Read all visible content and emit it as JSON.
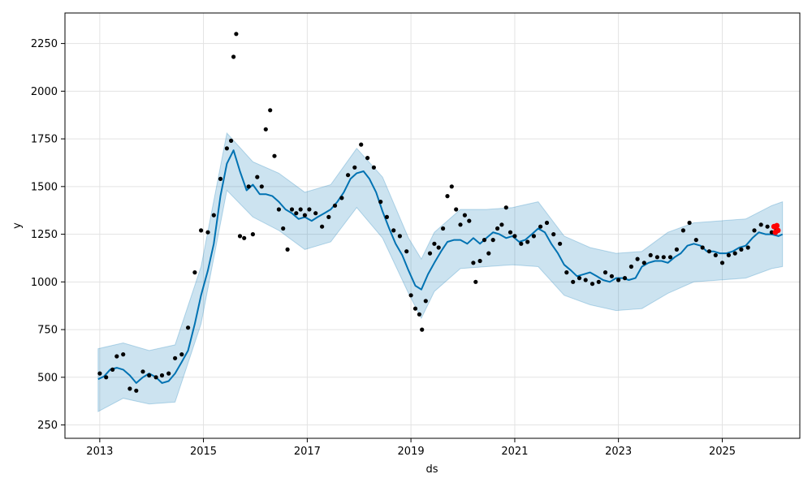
{
  "chart_data": {
    "type": "scatter",
    "title": "",
    "xlabel": "ds",
    "ylabel": "y",
    "grid": true,
    "xlim": [
      "2012-05-01",
      "2026-07-01"
    ],
    "ylim": [
      180,
      2410
    ],
    "x_ticks": [
      "2013",
      "2015",
      "2017",
      "2019",
      "2021",
      "2023",
      "2025"
    ],
    "y_ticks": [
      250,
      500,
      750,
      1000,
      1250,
      1500,
      1750,
      2000,
      2250
    ],
    "series": [
      {
        "kind": "observed",
        "color": "#000000",
        "x": [
          "2013-01-01",
          "2013-02-15",
          "2013-04-01",
          "2013-05-01",
          "2013-06-15",
          "2013-08-01",
          "2013-09-15",
          "2013-11-01",
          "2013-12-15",
          "2014-02-01",
          "2014-03-15",
          "2014-05-01",
          "2014-06-15",
          "2014-08-01",
          "2014-09-15",
          "2014-11-01",
          "2014-12-15",
          "2015-02-01",
          "2015-03-15",
          "2015-05-01",
          "2015-06-15",
          "2015-07-15",
          "2015-08-01",
          "2015-08-20",
          "2015-09-15",
          "2015-10-15",
          "2015-11-15",
          "2015-12-15",
          "2016-01-15",
          "2016-02-15",
          "2016-03-15",
          "2016-04-15",
          "2016-05-15",
          "2016-06-15",
          "2016-07-15",
          "2016-08-15",
          "2016-09-15",
          "2016-10-15",
          "2016-11-15",
          "2016-12-15",
          "2017-01-15",
          "2017-03-01",
          "2017-04-15",
          "2017-06-01",
          "2017-07-15",
          "2017-09-01",
          "2017-10-15",
          "2017-12-01",
          "2018-01-15",
          "2018-03-01",
          "2018-04-15",
          "2018-06-01",
          "2018-07-15",
          "2018-09-01",
          "2018-10-15",
          "2018-12-01",
          "2019-01-01",
          "2019-02-01",
          "2019-03-01",
          "2019-03-20",
          "2019-04-15",
          "2019-05-15",
          "2019-06-15",
          "2019-07-15",
          "2019-08-15",
          "2019-09-15",
          "2019-10-15",
          "2019-11-15",
          "2019-12-15",
          "2020-01-15",
          "2020-02-15",
          "2020-03-15",
          "2020-04-01",
          "2020-05-01",
          "2020-06-01",
          "2020-07-01",
          "2020-08-01",
          "2020-09-01",
          "2020-10-01",
          "2020-11-01",
          "2020-12-01",
          "2021-01-01",
          "2021-02-15",
          "2021-04-01",
          "2021-05-15",
          "2021-07-01",
          "2021-08-15",
          "2021-10-01",
          "2021-11-15",
          "2022-01-01",
          "2022-02-15",
          "2022-04-01",
          "2022-05-15",
          "2022-07-01",
          "2022-08-15",
          "2022-10-01",
          "2022-11-15",
          "2023-01-01",
          "2023-02-15",
          "2023-04-01",
          "2023-05-15",
          "2023-07-01",
          "2023-08-15",
          "2023-10-01",
          "2023-11-15",
          "2024-01-01",
          "2024-02-15",
          "2024-04-01",
          "2024-05-15",
          "2024-07-01",
          "2024-08-15",
          "2024-10-01",
          "2024-11-15",
          "2025-01-01",
          "2025-02-15",
          "2025-04-01",
          "2025-05-15",
          "2025-07-01",
          "2025-08-15",
          "2025-10-01",
          "2025-11-15",
          "2025-12-15",
          "2026-01-15"
        ],
        "y": [
          520,
          500,
          540,
          610,
          620,
          440,
          430,
          530,
          510,
          500,
          510,
          520,
          600,
          620,
          760,
          1050,
          1270,
          1260,
          1350,
          1540,
          1700,
          1740,
          2180,
          2300,
          1240,
          1230,
          1500,
          1250,
          1550,
          1500,
          1800,
          1900,
          1660,
          1380,
          1280,
          1170,
          1380,
          1360,
          1380,
          1350,
          1380,
          1360,
          1290,
          1340,
          1400,
          1440,
          1560,
          1600,
          1720,
          1650,
          1600,
          1420,
          1340,
          1270,
          1240,
          1160,
          930,
          860,
          830,
          750,
          900,
          1150,
          1200,
          1180,
          1280,
          1450,
          1500,
          1380,
          1300,
          1350,
          1320,
          1100,
          1000,
          1110,
          1220,
          1150,
          1220,
          1280,
          1300,
          1390,
          1260,
          1240,
          1200,
          1210,
          1240,
          1290,
          1310,
          1250,
          1200,
          1050,
          1000,
          1020,
          1010,
          990,
          1000,
          1050,
          1030,
          1010,
          1020,
          1080,
          1120,
          1100,
          1140,
          1130,
          1130,
          1130,
          1170,
          1270,
          1310,
          1220,
          1180,
          1160,
          1140,
          1100,
          1140,
          1150,
          1170,
          1180,
          1270,
          1300,
          1290,
          1260,
          1280
        ]
      },
      {
        "kind": "recent observations",
        "color": "#ff0000",
        "x": [
          "2026-01-01",
          "2026-01-10",
          "2026-01-20",
          "2026-01-28"
        ],
        "y": [
          1290,
          1260,
          1295,
          1270
        ]
      },
      {
        "kind": "forecast",
        "color": "#0072b2",
        "x": [
          "2012-12-20",
          "2013-02-01",
          "2013-03-15",
          "2013-05-01",
          "2013-06-15",
          "2013-08-01",
          "2013-09-15",
          "2013-11-01",
          "2013-12-15",
          "2014-02-01",
          "2014-03-15",
          "2014-05-01",
          "2014-06-15",
          "2014-08-01",
          "2014-09-15",
          "2014-11-01",
          "2014-12-15",
          "2015-02-01",
          "2015-03-15",
          "2015-05-01",
          "2015-06-15",
          "2015-08-01",
          "2015-09-15",
          "2015-11-01",
          "2015-12-15",
          "2016-02-01",
          "2016-03-15",
          "2016-05-01",
          "2016-06-15",
          "2016-08-01",
          "2016-09-15",
          "2016-11-01",
          "2016-12-15",
          "2017-02-01",
          "2017-03-15",
          "2017-05-01",
          "2017-06-15",
          "2017-08-01",
          "2017-09-15",
          "2017-11-01",
          "2017-12-15",
          "2018-02-01",
          "2018-03-15",
          "2018-05-01",
          "2018-06-15",
          "2018-08-01",
          "2018-09-15",
          "2018-11-01",
          "2018-12-15",
          "2019-02-01",
          "2019-03-15",
          "2019-05-01",
          "2019-06-15",
          "2019-08-01",
          "2019-09-15",
          "2019-11-01",
          "2019-12-15",
          "2020-02-01",
          "2020-03-15",
          "2020-05-01",
          "2020-06-15",
          "2020-08-01",
          "2020-09-15",
          "2020-11-01",
          "2020-12-15",
          "2021-02-01",
          "2021-03-15",
          "2021-05-01",
          "2021-06-15",
          "2021-08-01",
          "2021-09-15",
          "2021-11-01",
          "2021-12-15",
          "2022-02-01",
          "2022-03-15",
          "2022-05-01",
          "2022-06-15",
          "2022-08-01",
          "2022-09-15",
          "2022-11-01",
          "2022-12-15",
          "2023-02-01",
          "2023-03-15",
          "2023-05-01",
          "2023-06-15",
          "2023-08-01",
          "2023-09-15",
          "2023-11-01",
          "2023-12-15",
          "2024-02-01",
          "2024-03-15",
          "2024-05-01",
          "2024-06-15",
          "2024-08-01",
          "2024-09-15",
          "2024-11-01",
          "2024-12-15",
          "2025-02-01",
          "2025-03-15",
          "2025-05-01",
          "2025-06-15",
          "2025-08-01",
          "2025-09-15",
          "2025-11-01",
          "2025-12-15",
          "2026-02-01",
          "2026-03-01"
        ],
        "y": [
          490,
          505,
          540,
          550,
          540,
          510,
          470,
          500,
          520,
          500,
          470,
          480,
          520,
          580,
          640,
          780,
          930,
          1060,
          1200,
          1450,
          1620,
          1690,
          1580,
          1480,
          1510,
          1460,
          1460,
          1450,
          1420,
          1380,
          1360,
          1330,
          1340,
          1320,
          1340,
          1360,
          1380,
          1420,
          1470,
          1540,
          1570,
          1580,
          1540,
          1470,
          1370,
          1280,
          1200,
          1140,
          1060,
          980,
          960,
          1040,
          1100,
          1160,
          1210,
          1220,
          1220,
          1200,
          1230,
          1200,
          1230,
          1260,
          1250,
          1230,
          1240,
          1210,
          1220,
          1250,
          1280,
          1260,
          1200,
          1150,
          1090,
          1060,
          1030,
          1040,
          1050,
          1030,
          1010,
          1000,
          1020,
          1020,
          1010,
          1020,
          1080,
          1100,
          1110,
          1110,
          1100,
          1130,
          1150,
          1190,
          1200,
          1190,
          1160,
          1160,
          1150,
          1150,
          1160,
          1180,
          1190,
          1230,
          1260,
          1250,
          1250,
          1240,
          1250
        ]
      },
      {
        "kind": "uncertainty interval",
        "color": "#0072b2",
        "x": [
          "2012-12-20",
          "2013-06-15",
          "2013-12-15",
          "2014-06-15",
          "2014-12-15",
          "2015-06-15",
          "2015-12-15",
          "2016-06-15",
          "2016-12-15",
          "2017-06-15",
          "2017-12-15",
          "2018-06-15",
          "2018-12-15",
          "2019-03-15",
          "2019-06-15",
          "2019-12-15",
          "2020-06-15",
          "2020-12-15",
          "2021-06-15",
          "2021-12-15",
          "2022-06-15",
          "2022-12-15",
          "2023-06-15",
          "2023-12-15",
          "2024-06-15",
          "2024-12-15",
          "2025-06-15",
          "2025-12-15",
          "2026-03-01"
        ],
        "lower": [
          320,
          390,
          360,
          370,
          780,
          1480,
          1340,
          1270,
          1170,
          1210,
          1390,
          1230,
          940,
          810,
          950,
          1070,
          1080,
          1090,
          1080,
          930,
          880,
          850,
          860,
          940,
          1000,
          1010,
          1020,
          1070,
          1080
        ],
        "upper": [
          650,
          680,
          640,
          670,
          1080,
          1780,
          1630,
          1570,
          1470,
          1510,
          1700,
          1550,
          1230,
          1120,
          1260,
          1380,
          1380,
          1390,
          1420,
          1240,
          1180,
          1150,
          1160,
          1260,
          1310,
          1320,
          1330,
          1400,
          1420
        ]
      }
    ]
  }
}
